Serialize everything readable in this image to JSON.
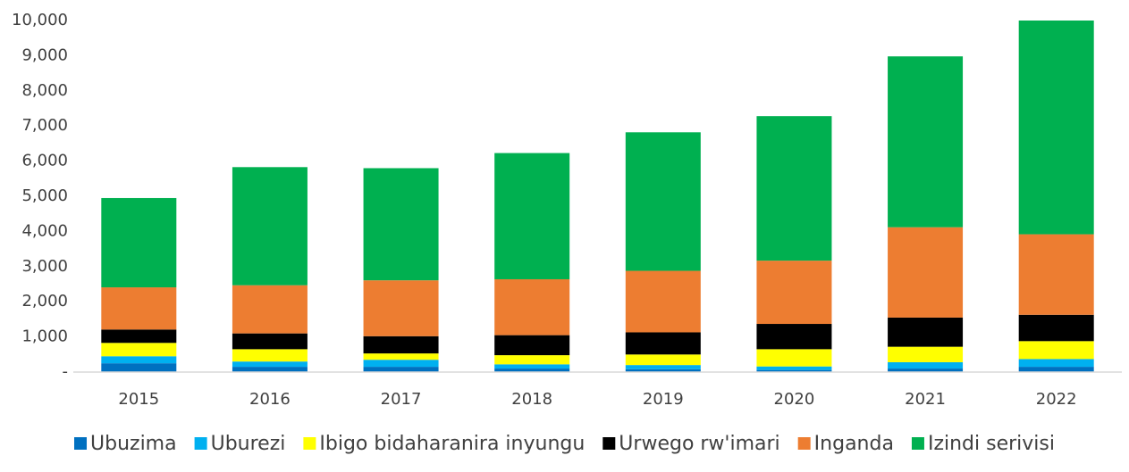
{
  "chart_data": {
    "type": "stacked_bar",
    "categories": [
      "2015",
      "2016",
      "2017",
      "2018",
      "2019",
      "2020",
      "2021",
      "2022"
    ],
    "series": [
      {
        "name": "Ubuzima",
        "color": "#0070c0",
        "values": [
          250,
          150,
          150,
          100,
          80,
          60,
          100,
          150
        ]
      },
      {
        "name": "Uburezi",
        "color": "#00b0f0",
        "values": [
          200,
          150,
          200,
          120,
          120,
          100,
          180,
          220
        ]
      },
      {
        "name": "Ibigo bidaharanira inyungu",
        "color": "#ffff00",
        "values": [
          380,
          350,
          180,
          260,
          300,
          490,
          440,
          510
        ]
      },
      {
        "name": "Urwego rw'imari",
        "color": "#000000",
        "values": [
          380,
          450,
          490,
          570,
          630,
          720,
          830,
          750
        ]
      },
      {
        "name": "Inganda",
        "color": "#ed7d31",
        "values": [
          1200,
          1370,
          1590,
          1590,
          1750,
          1800,
          2570,
          2290
        ]
      },
      {
        "name": "Izindi serivisi",
        "color": "#00b050",
        "values": [
          2540,
          3360,
          3190,
          3590,
          3940,
          4110,
          4860,
          6080
        ]
      }
    ],
    "ylim": [
      0,
      10000
    ],
    "yticks": [
      {
        "value": 0,
        "label": "-"
      },
      {
        "value": 1000,
        "label": "1,000"
      },
      {
        "value": 2000,
        "label": "2,000"
      },
      {
        "value": 3000,
        "label": "3,000"
      },
      {
        "value": 4000,
        "label": "4,000"
      },
      {
        "value": 5000,
        "label": "5,000"
      },
      {
        "value": 6000,
        "label": "6,000"
      },
      {
        "value": 7000,
        "label": "7,000"
      },
      {
        "value": 8000,
        "label": "8,000"
      },
      {
        "value": 9000,
        "label": "9,000"
      },
      {
        "value": 10000,
        "label": "10,000"
      }
    ],
    "legend": "bottom"
  }
}
